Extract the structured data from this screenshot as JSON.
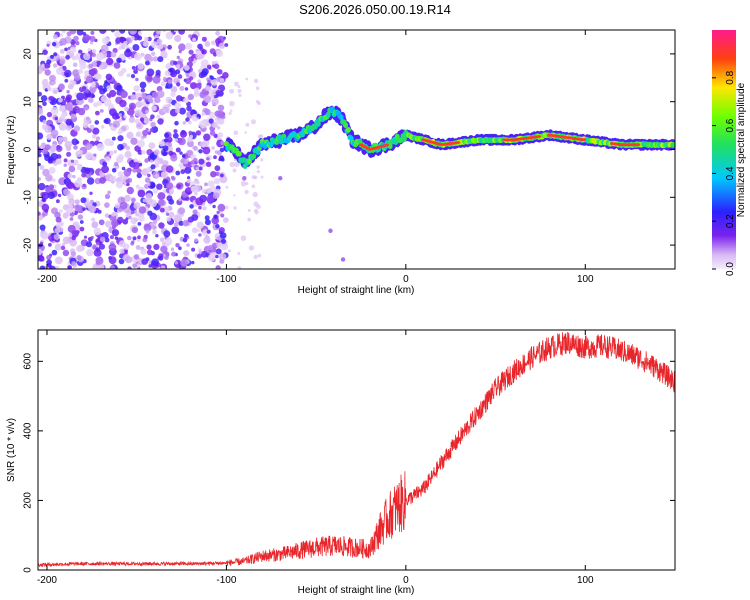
{
  "title": "S206.2026.050.00.19.R14",
  "chart_data": [
    {
      "type": "heatmap",
      "name": "spectrogram",
      "xlabel": "Height of straight line (km)",
      "ylabel": "Frequency (Hz)",
      "xlim": [
        -205,
        150
      ],
      "ylim": [
        -25,
        25
      ],
      "xticks": [
        -200,
        -100,
        0,
        100
      ],
      "yticks": [
        -20,
        -10,
        0,
        10,
        20
      ],
      "colorbar": {
        "label": "Normalized spectral amplitude",
        "range": [
          0,
          1
        ],
        "ticks": [
          "0.0",
          "0.2",
          "0.4",
          "0.6",
          "0.8"
        ],
        "tick_values": [
          0,
          0.2,
          0.4,
          0.6,
          0.8
        ]
      },
      "ridge": {
        "description_points_x": [
          -100,
          -95,
          -90,
          -80,
          -70,
          -60,
          -50,
          -45,
          -40,
          -35,
          -30,
          -25,
          -20,
          -10,
          0,
          10,
          20,
          40,
          60,
          80,
          100,
          120,
          150
        ],
        "description_points_y": [
          1,
          0,
          -3,
          1,
          2,
          3,
          5,
          7,
          8,
          6,
          2,
          1,
          0,
          1,
          3,
          2,
          1,
          2,
          2,
          3,
          2,
          1,
          1
        ]
      }
    },
    {
      "type": "line",
      "name": "snr",
      "xlabel": "Height of straight line (km)",
      "ylabel": "SNR (10 * v/v)",
      "xlim": [
        -205,
        150
      ],
      "ylim": [
        0,
        690
      ],
      "xticks": [
        -200,
        -100,
        0,
        100
      ],
      "yticks": [
        0,
        200,
        400,
        600
      ],
      "series": [
        {
          "name": "SNR",
          "color": "#e8252a",
          "x": [
            -205,
            -180,
            -150,
            -120,
            -100,
            -90,
            -80,
            -70,
            -60,
            -50,
            -40,
            -30,
            -20,
            -15,
            -10,
            -5,
            0,
            5,
            10,
            15,
            20,
            30,
            40,
            50,
            60,
            70,
            80,
            90,
            100,
            110,
            120,
            130,
            140,
            150
          ],
          "y": [
            15,
            18,
            18,
            18,
            20,
            25,
            40,
            45,
            55,
            65,
            70,
            65,
            60,
            110,
            150,
            180,
            200,
            215,
            235,
            270,
            310,
            380,
            450,
            520,
            570,
            610,
            640,
            655,
            640,
            645,
            630,
            610,
            580,
            540
          ]
        }
      ]
    }
  ]
}
